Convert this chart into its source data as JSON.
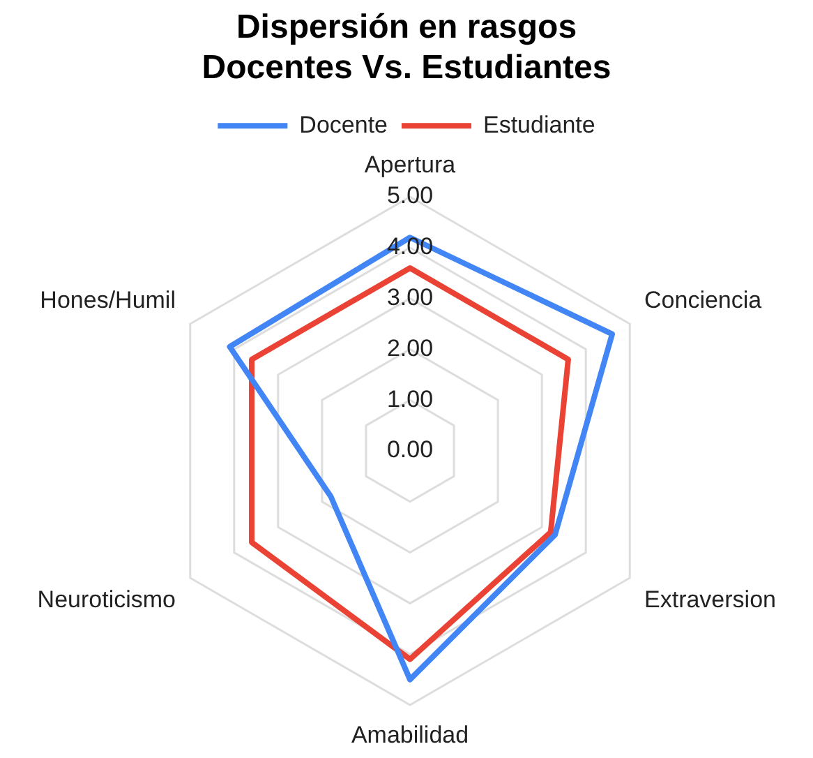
{
  "chart_data": {
    "type": "radar",
    "title": "Dispersión en rasgos\nDocentes Vs. Estudiantes",
    "categories": [
      "Apertura",
      "Conciencia",
      "Extraversion",
      "Amabilidad",
      "Neuroticismo",
      "Hones/Humil"
    ],
    "series": [
      {
        "name": "Docente",
        "color": "#4285f4",
        "values": [
          4.2,
          4.6,
          3.3,
          4.5,
          1.8,
          4.1
        ]
      },
      {
        "name": "Estudiante",
        "color": "#ea4335",
        "values": [
          3.6,
          3.6,
          3.2,
          4.1,
          3.6,
          3.6
        ]
      }
    ],
    "ylim": [
      0,
      5
    ],
    "yticks": [
      {
        "value": 0,
        "label": "0.00"
      },
      {
        "value": 1,
        "label": "1.00"
      },
      {
        "value": 2,
        "label": "2.00"
      },
      {
        "value": 3,
        "label": "3.00"
      },
      {
        "value": 4,
        "label": "4.00"
      },
      {
        "value": 5,
        "label": "5.00"
      }
    ],
    "grid": true,
    "legend": "top",
    "marker": "none",
    "line_style": "solid"
  }
}
